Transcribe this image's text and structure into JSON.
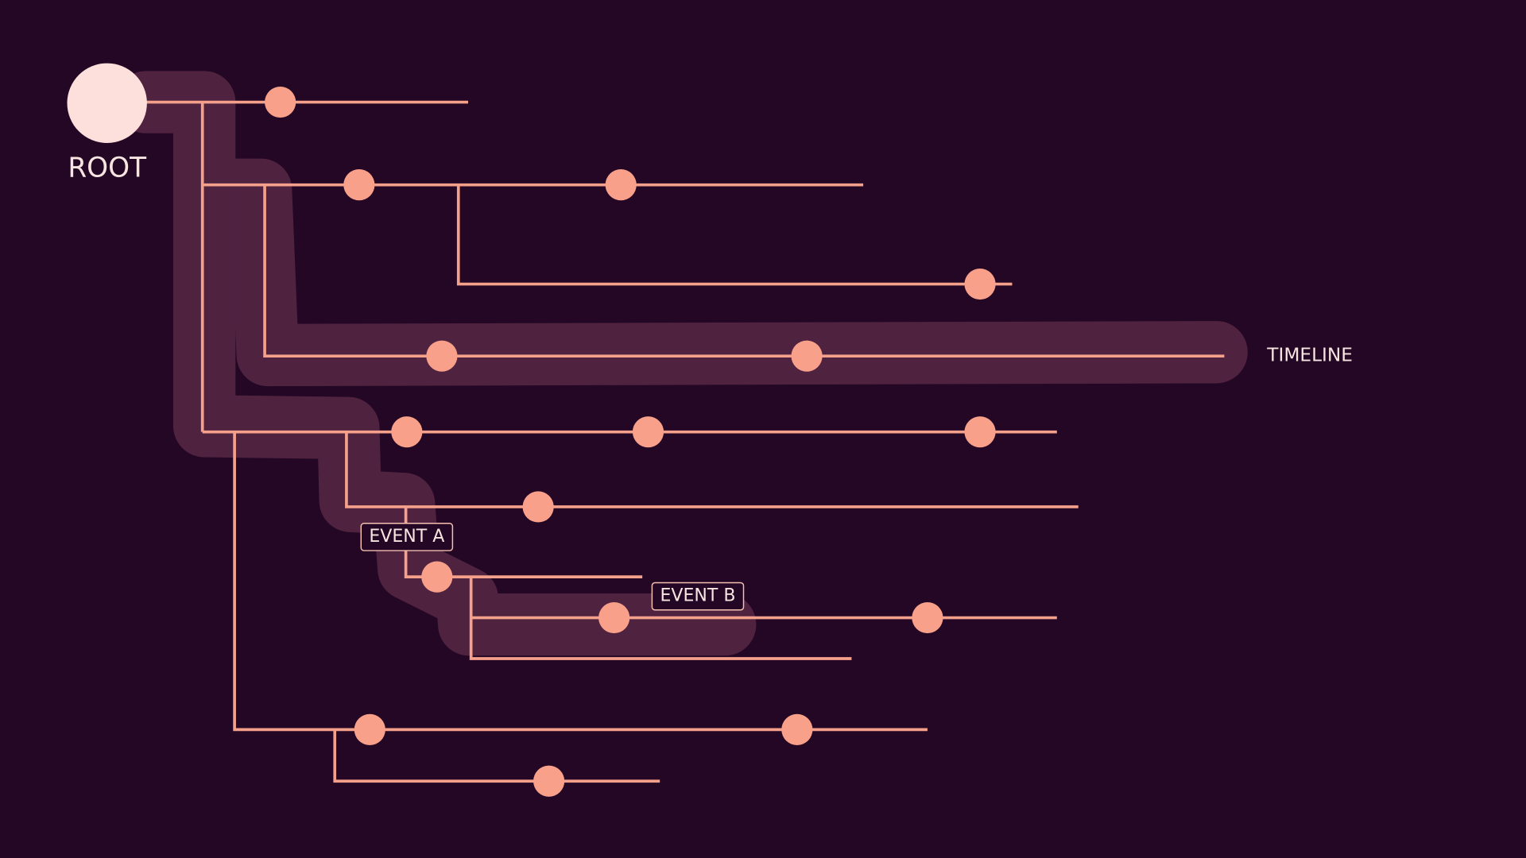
{
  "root": {
    "label": "ROOT"
  },
  "timeline": {
    "label": "TIMELINE"
  },
  "events": [
    {
      "label": "EVENT A"
    },
    {
      "label": "EVENT B"
    }
  ]
}
